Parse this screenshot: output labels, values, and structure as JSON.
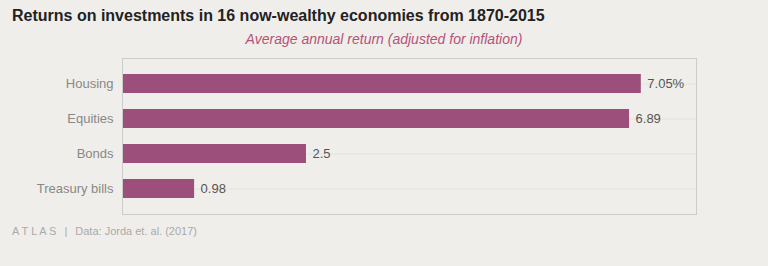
{
  "chart_data": {
    "type": "bar",
    "orientation": "horizontal",
    "title": "Returns on investments in 16 now-wealthy economies from 1870-2015",
    "subtitle": "Average annual return (adjusted for inflation)",
    "categories": [
      "Housing",
      "Equities",
      "Bonds",
      "Treasury bills"
    ],
    "values": [
      7.05,
      6.89,
      2.5,
      0.98
    ],
    "value_labels": [
      "7.05%",
      "6.89",
      "2.5",
      "0.98"
    ],
    "data_labels": true,
    "color": "#9b4f7a",
    "xlim": [
      0,
      7.8
    ],
    "grid": true,
    "tick_labels": "y",
    "annotations": [
      "A T L A S",
      "|",
      "Data: Jorda et. al. (2017)"
    ]
  }
}
